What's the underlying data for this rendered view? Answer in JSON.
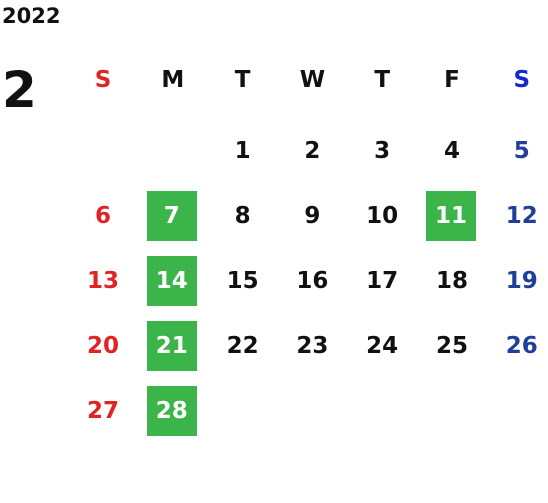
{
  "year": "2022",
  "month": "2",
  "weekdays": [
    "S",
    "M",
    "T",
    "W",
    "T",
    "F",
    "S"
  ],
  "weeks": [
    [
      null,
      null,
      1,
      2,
      3,
      4,
      5
    ],
    [
      6,
      7,
      8,
      9,
      10,
      11,
      12
    ],
    [
      13,
      14,
      15,
      16,
      17,
      18,
      19
    ],
    [
      20,
      21,
      22,
      23,
      24,
      25,
      26
    ],
    [
      27,
      28,
      null,
      null,
      null,
      null,
      null
    ]
  ],
  "highlighted": [
    7,
    11,
    14,
    21,
    28
  ]
}
